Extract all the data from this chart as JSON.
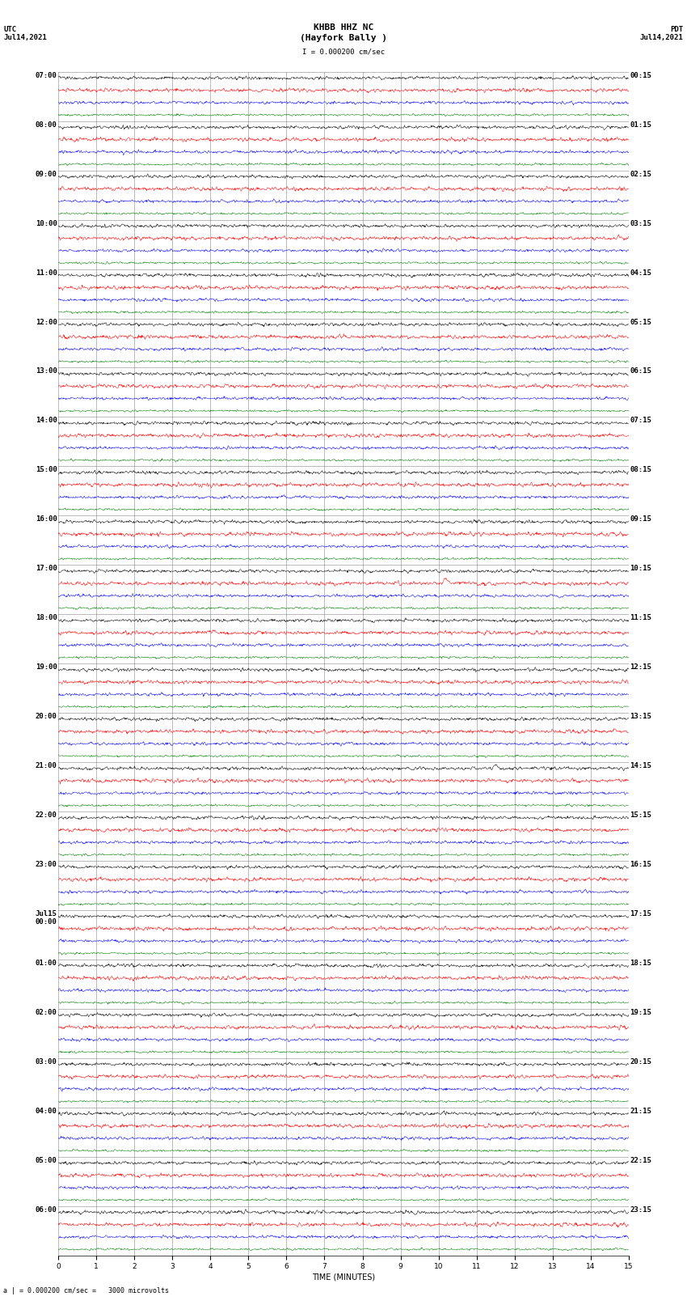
{
  "title_line1": "KHBB HHZ NC",
  "title_line2": "(Hayfork Bally )",
  "scale_bar_text": "I = 0.000200 cm/sec",
  "left_label_line1": "UTC",
  "left_label_line2": "Jul14,2021",
  "right_label_line1": "PDT",
  "right_label_line2": "Jul14,2021",
  "bottom_label": "a | = 0.000200 cm/sec =   3000 microvolts",
  "xlabel": "TIME (MINUTES)",
  "xtick_labels": [
    "0",
    "1",
    "2",
    "3",
    "4",
    "5",
    "6",
    "7",
    "8",
    "9",
    "10",
    "11",
    "12",
    "13",
    "14",
    "15"
  ],
  "left_times": [
    "07:00",
    "08:00",
    "09:00",
    "10:00",
    "11:00",
    "12:00",
    "13:00",
    "14:00",
    "15:00",
    "16:00",
    "17:00",
    "18:00",
    "19:00",
    "20:00",
    "21:00",
    "22:00",
    "23:00",
    "Jul15\n00:00",
    "01:00",
    "02:00",
    "03:00",
    "04:00",
    "05:00",
    "06:00"
  ],
  "right_times": [
    "00:15",
    "01:15",
    "02:15",
    "03:15",
    "04:15",
    "05:15",
    "06:15",
    "07:15",
    "08:15",
    "09:15",
    "10:15",
    "11:15",
    "12:15",
    "13:15",
    "14:15",
    "15:15",
    "16:15",
    "17:15",
    "18:15",
    "19:15",
    "20:15",
    "21:15",
    "22:15",
    "23:15"
  ],
  "num_hour_groups": 24,
  "traces_per_group": 4,
  "colors": [
    "black",
    "red",
    "blue",
    "green"
  ],
  "fig_width": 8.5,
  "fig_height": 16.13,
  "background_color": "white",
  "grid_color": "#777777",
  "title_fontsize": 8,
  "label_fontsize": 7,
  "tick_fontsize": 6.5,
  "noise_scales": [
    0.3,
    0.35,
    0.28,
    0.2
  ],
  "amp_scale": 0.35
}
